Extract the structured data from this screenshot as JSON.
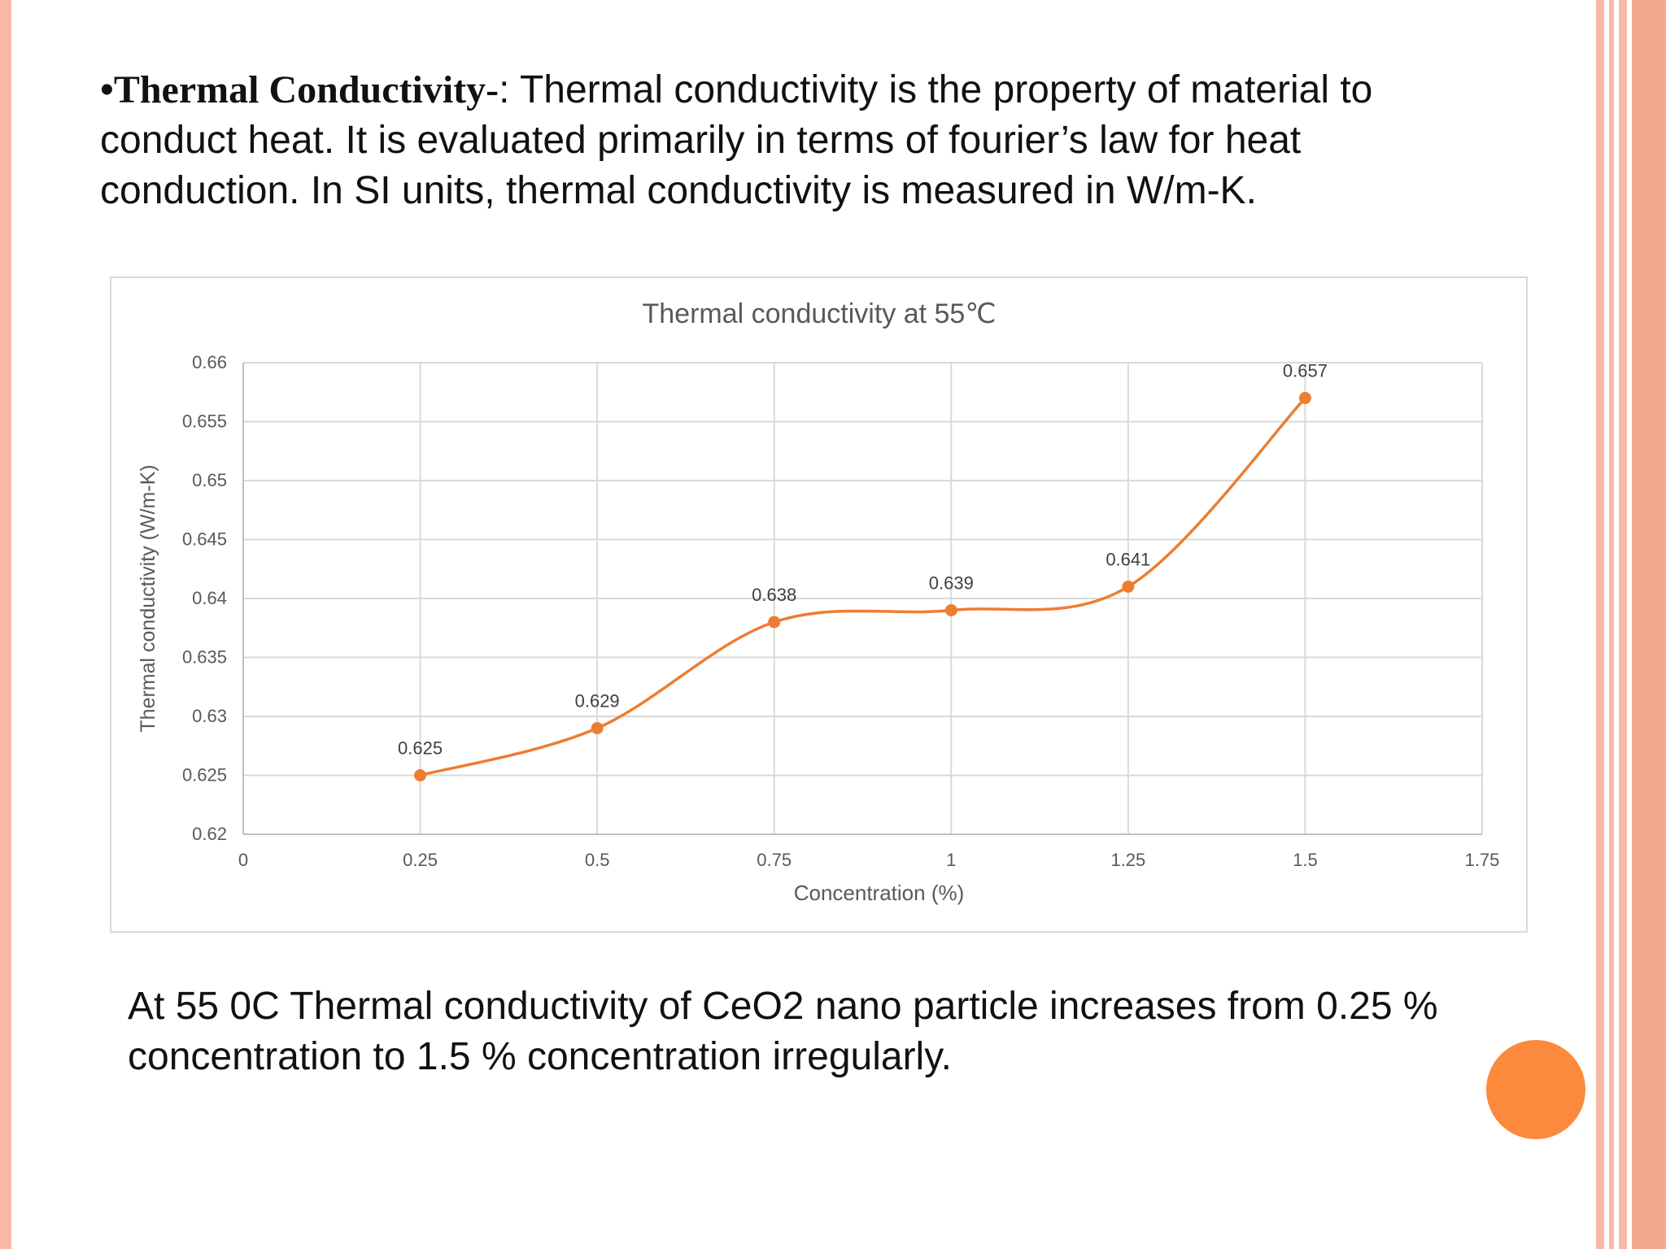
{
  "slide": {
    "heading_bullet": "•",
    "heading_term": "Thermal Conductivity-",
    "heading_body": ": Thermal conductivity is the property of material to conduct heat. It is evaluated primarily in terms of fourier’s law for heat conduction. In SI units, thermal conductivity is measured in W/m-K.",
    "caption": "At 55 0C Thermal conductivity of CeO2 nano particle increases from 0.25 % concentration to 1.5 % concentration irregularly."
  },
  "colors": {
    "accent": "#ed7d31",
    "decor_bars": "#f7b9a6",
    "circle": "#fd8a3c"
  },
  "chart_data": {
    "type": "line",
    "title": "Thermal conductivity at 55℃",
    "xlabel": "Concentration (%)",
    "ylabel": "Thermal conductivity (W/m-K)",
    "x": [
      0.25,
      0.5,
      0.75,
      1,
      1.25,
      1.5
    ],
    "y": [
      0.625,
      0.629,
      0.638,
      0.639,
      0.641,
      0.657
    ],
    "data_labels": [
      "0.625",
      "0.629",
      "0.638",
      "0.639",
      "0.641",
      "0.657"
    ],
    "xlim": [
      0,
      1.75
    ],
    "ylim": [
      0.62,
      0.66
    ],
    "xticks": [
      "0",
      "0.25",
      "0.5",
      "0.75",
      "1",
      "1.25",
      "1.5",
      "1.75"
    ],
    "yticks": [
      "0.62",
      "0.625",
      "0.63",
      "0.635",
      "0.64",
      "0.645",
      "0.65",
      "0.655",
      "0.66"
    ],
    "grid": true,
    "smooth": true,
    "legend": "none"
  }
}
